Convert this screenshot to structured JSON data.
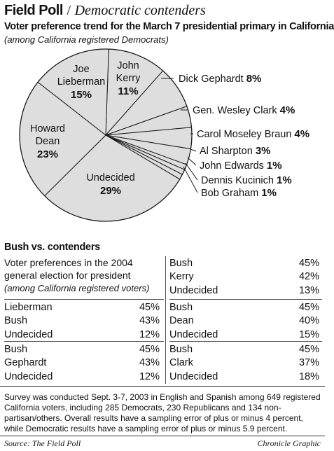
{
  "header": {
    "brand": "Field Poll",
    "separator": "/",
    "section": "Democratic contenders",
    "subtitle": "Voter preference trend for the March 7 presidential primary in California",
    "note": "(among California registered Democrats)"
  },
  "chart_data": {
    "type": "pie",
    "title": "Voter preference trend for the March 7 presidential primary in California",
    "subtitle": "(among California registered Democrats)",
    "slices": [
      {
        "name": "John Kerry",
        "value": 11,
        "label": "11%"
      },
      {
        "name": "Dick Gephardt",
        "value": 8,
        "label": "8%"
      },
      {
        "name": "Gen. Wesley Clark",
        "value": 4,
        "label": "4%"
      },
      {
        "name": "Carol Moseley Braun",
        "value": 4,
        "label": "4%"
      },
      {
        "name": "Al Sharpton",
        "value": 3,
        "label": "3%"
      },
      {
        "name": "John Edwards",
        "value": 1,
        "label": "1%"
      },
      {
        "name": "Dennis Kucinich",
        "value": 1,
        "label": "1%"
      },
      {
        "name": "Bob Graham",
        "value": 1,
        "label": "1%"
      },
      {
        "name": "Undecided",
        "value": 29,
        "label": "29%"
      },
      {
        "name": "Howard Dean",
        "value": 23,
        "label": "23%"
      },
      {
        "name": "Joe Lieberman",
        "value": 15,
        "label": "15%"
      }
    ],
    "inside_labels": [
      {
        "lines": [
          "John",
          "Kerry"
        ],
        "pct": "11%"
      },
      {
        "lines": [
          "Joe",
          "Lieberman"
        ],
        "pct": "15%"
      },
      {
        "lines": [
          "Howard",
          "Dean"
        ],
        "pct": "23%"
      },
      {
        "lines": [
          "Undecided"
        ],
        "pct": "29%"
      }
    ],
    "outside_labels": [
      {
        "name": "Dick Gephardt",
        "pct": "8%"
      },
      {
        "name": "Gen. Wesley Clark",
        "pct": "4%"
      },
      {
        "name": "Carol Moseley Braun",
        "pct": "4%"
      },
      {
        "name": "Al Sharpton",
        "pct": "3%"
      },
      {
        "name": "John Edwards",
        "pct": "1%"
      },
      {
        "name": "Dennis Kucinich",
        "pct": "1%"
      },
      {
        "name": "Bob Graham",
        "pct": "1%"
      }
    ]
  },
  "matchups": {
    "title": "Bush vs. contenders",
    "description": "Voter preferences in the 2004 general election for president",
    "population": "(among California registered voters)",
    "tables": [
      {
        "rows": [
          {
            "name": "Bush",
            "pct": "45%"
          },
          {
            "name": "Kerry",
            "pct": "42%"
          },
          {
            "name": "Undecided",
            "pct": "13%"
          }
        ]
      },
      {
        "rows": [
          {
            "name": "Lieberman",
            "pct": "45%"
          },
          {
            "name": "Bush",
            "pct": "43%"
          },
          {
            "name": "Undecided",
            "pct": "12%"
          }
        ]
      },
      {
        "rows": [
          {
            "name": "Bush",
            "pct": "45%"
          },
          {
            "name": "Dean",
            "pct": "40%"
          },
          {
            "name": "Undecided",
            "pct": "15%"
          }
        ]
      },
      {
        "rows": [
          {
            "name": "Bush",
            "pct": "45%"
          },
          {
            "name": "Gephardt",
            "pct": "43%"
          },
          {
            "name": "Undecided",
            "pct": "12%"
          }
        ]
      },
      {
        "rows": [
          {
            "name": "Bush",
            "pct": "45%"
          },
          {
            "name": "Clark",
            "pct": "37%"
          },
          {
            "name": "Undecided",
            "pct": "18%"
          }
        ]
      }
    ]
  },
  "footer": {
    "survey_note": "Survey was conducted Sept. 3-7, 2003 in English and Spanish among 649 registered California voters, including 285 Democrats, 230 Republicans and 134 non-partisan/others. Overall results have a sampling error of plus or minus 4 percent, while Democratic results have a sampling error of plus or minus 5.9 percent.",
    "source": "Source: The Field Poll",
    "credit": "Chronicle Graphic"
  }
}
